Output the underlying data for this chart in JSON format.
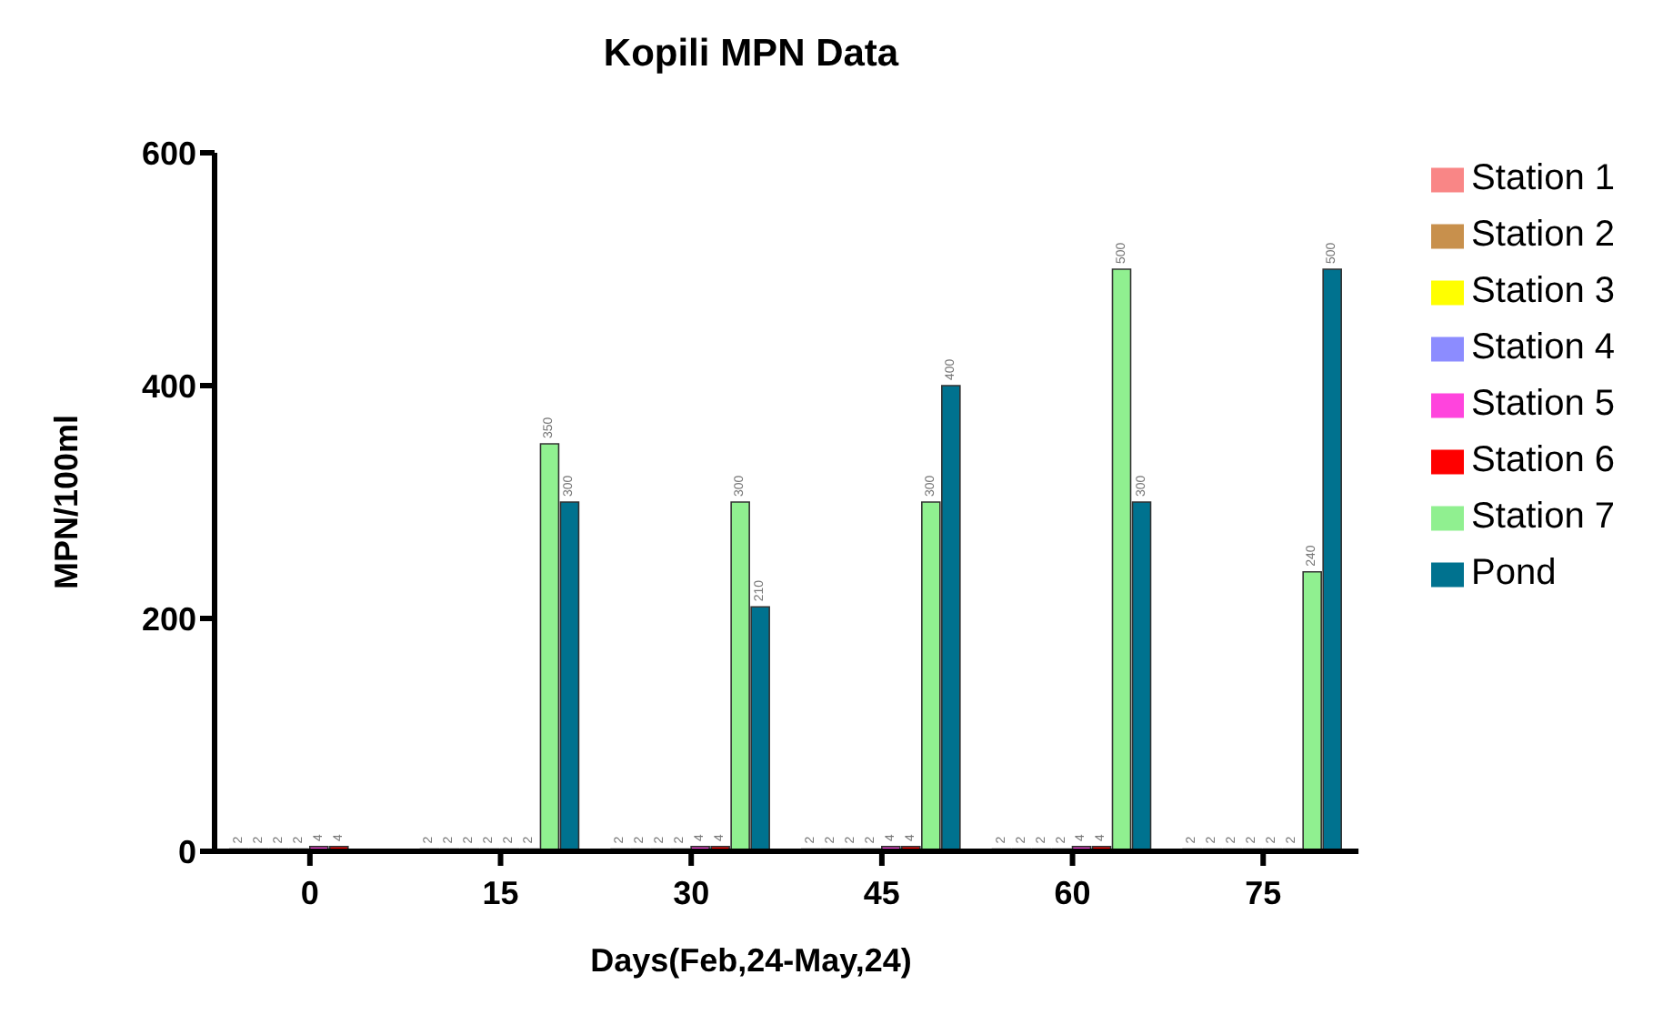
{
  "chart_data": {
    "type": "bar",
    "title": "Kopili MPN Data",
    "xlabel": "Days(Feb,24-May,24)",
    "ylabel": "MPN/100ml",
    "categories": [
      "0",
      "15",
      "30",
      "45",
      "60",
      "75"
    ],
    "series": [
      {
        "name": "Station 1",
        "color": "#f98686",
        "values": [
          2,
          2,
          2,
          2,
          2,
          2
        ]
      },
      {
        "name": "Station 2",
        "color": "#c8904c",
        "values": [
          2,
          2,
          2,
          2,
          2,
          2
        ]
      },
      {
        "name": "Station 3",
        "color": "#ffff00",
        "values": [
          2,
          2,
          2,
          2,
          2,
          2
        ]
      },
      {
        "name": "Station 4",
        "color": "#8c8cff",
        "values": [
          2,
          2,
          2,
          2,
          2,
          2
        ]
      },
      {
        "name": "Station 5",
        "color": "#ff44dd",
        "values": [
          4,
          2,
          4,
          4,
          4,
          2
        ]
      },
      {
        "name": "Station 6",
        "color": "#ff0000",
        "values": [
          4,
          2,
          4,
          4,
          4,
          2
        ]
      },
      {
        "name": "Station 7",
        "color": "#90f090",
        "values": [
          null,
          350,
          300,
          300,
          500,
          240
        ]
      },
      {
        "name": "Pond",
        "color": "#00728f",
        "values": [
          null,
          300,
          210,
          400,
          300,
          500
        ]
      }
    ],
    "ylim": [
      0,
      600
    ],
    "yticks": [
      0,
      200,
      400,
      600
    ],
    "grid": false,
    "legend": "right",
    "data_labels": true
  }
}
